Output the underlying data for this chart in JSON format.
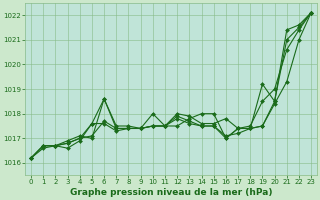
{
  "title": "Graphe pression niveau de la mer (hPa)",
  "xlabel_ticks": [
    0,
    1,
    2,
    3,
    4,
    5,
    6,
    7,
    8,
    9,
    10,
    11,
    12,
    13,
    14,
    15,
    16,
    17,
    18,
    19,
    20,
    21,
    22,
    23
  ],
  "ylim": [
    1015.5,
    1022.5
  ],
  "yticks": [
    1016,
    1017,
    1018,
    1019,
    1020,
    1021,
    1022
  ],
  "xlim": [
    -0.5,
    23.5
  ],
  "background_color": "#cce8cc",
  "plot_bg_color": "#c0e4d8",
  "grid_color": "#88bb88",
  "line_color": "#1a6b1a",
  "marker_color": "#1a6b1a",
  "series": {
    "line1": {
      "x": [
        0,
        1,
        2,
        3,
        4,
        5,
        6,
        7,
        8,
        9,
        10,
        11,
        12,
        13,
        14,
        15,
        16,
        17,
        18,
        19,
        20,
        21,
        22,
        23
      ],
      "y": [
        1016.2,
        1016.7,
        1016.7,
        1016.8,
        1017.0,
        1017.6,
        1018.6,
        1017.4,
        1017.4,
        1017.4,
        1017.5,
        1017.5,
        1017.9,
        1017.7,
        1017.5,
        1017.5,
        1017.0,
        1017.4,
        1017.4,
        1019.2,
        1018.5,
        1021.4,
        1021.6,
        1022.1
      ]
    },
    "line2": {
      "x": [
        0,
        1,
        2,
        3,
        4,
        5,
        6,
        7,
        8,
        9,
        10,
        11,
        12,
        13,
        14,
        15,
        16,
        17,
        18,
        19,
        20,
        21,
        22,
        23
      ],
      "y": [
        1016.2,
        1016.6,
        1016.7,
        1016.6,
        1016.9,
        1017.6,
        1017.6,
        1017.3,
        1017.4,
        1017.4,
        1017.5,
        1017.5,
        1017.8,
        1017.6,
        1017.5,
        1017.5,
        1017.1,
        1017.2,
        1017.4,
        1017.5,
        1018.4,
        1019.3,
        1021.0,
        1022.1
      ]
    },
    "line3": {
      "x": [
        0,
        1,
        2,
        3,
        4,
        5,
        6,
        7,
        8,
        9,
        10,
        11,
        12,
        13,
        14,
        15,
        16,
        17,
        18,
        19,
        20,
        21,
        22,
        23
      ],
      "y": [
        1016.2,
        1016.7,
        1016.7,
        1016.9,
        1017.1,
        1017.0,
        1018.6,
        1017.5,
        1017.5,
        1017.4,
        1018.0,
        1017.5,
        1017.5,
        1017.8,
        1018.0,
        1018.0,
        1017.0,
        1017.4,
        1017.5,
        1018.5,
        1019.0,
        1020.6,
        1021.4,
        1022.1
      ]
    },
    "line4": {
      "x": [
        0,
        1,
        2,
        3,
        4,
        5,
        6,
        7,
        8,
        9,
        10,
        11,
        12,
        13,
        14,
        15,
        16,
        17,
        18,
        19,
        20,
        21,
        22,
        23
      ],
      "y": [
        1016.2,
        1016.7,
        1016.7,
        1016.8,
        1017.0,
        1017.1,
        1017.7,
        1017.4,
        1017.4,
        1017.4,
        1017.5,
        1017.5,
        1018.0,
        1017.9,
        1017.6,
        1017.6,
        1017.8,
        1017.4,
        1017.4,
        1017.5,
        1018.5,
        1021.0,
        1021.5,
        1022.1
      ]
    }
  },
  "marker": "D",
  "markersize": 2.0,
  "linewidth": 0.8,
  "label_fontsize": 6.5,
  "tick_fontsize": 5.0
}
